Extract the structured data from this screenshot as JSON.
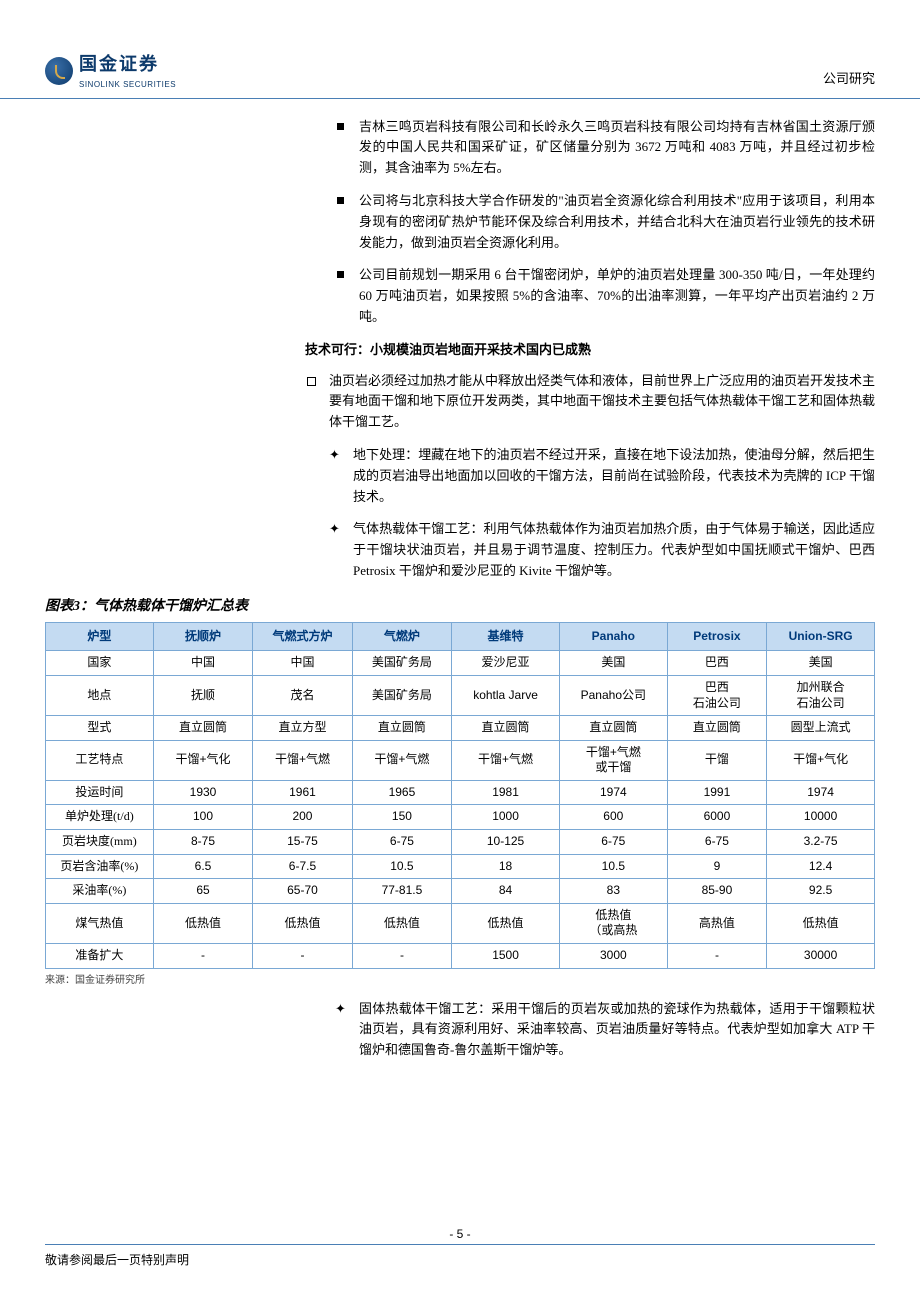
{
  "header": {
    "company_cn": "国金证券",
    "company_en": "SINOLINK SECURITIES",
    "category": "公司研究"
  },
  "colors": {
    "table_header_bg": "#c4dbf2",
    "table_header_text": "#003a7a",
    "table_border": "#7aa8d4",
    "rule_line": "#4a7fb5",
    "logo_dark": "#0d3a6b"
  },
  "bullets_top": [
    "吉林三鸣页岩科技有限公司和长岭永久三鸣页岩科技有限公司均持有吉林省国土资源厅颁发的中国人民共和国采矿证，矿区储量分别为 3672 万吨和 4083 万吨，并且经过初步检测，其含油率为 5%左右。",
    "公司将与北京科技大学合作研发的\"油页岩全资源化综合利用技术\"应用于该项目，利用本身现有的密闭矿热炉节能环保及综合利用技术，并结合北科大在油页岩行业领先的技术研发能力，做到油页岩全资源化利用。",
    "公司目前规划一期采用 6 台干馏密闭炉，单炉的油页岩处理量 300-350 吨/日，一年处理约 60 万吨油页岩，如果按照 5%的含油率、70%的出油率测算，一年平均产出页岩油约 2 万吨。"
  ],
  "tech_heading": "技术可行：小规模油页岩地面开采技术国内已成熟",
  "tech_bullet": "油页岩必须经过加热才能从中释放出烃类气体和液体，目前世界上广泛应用的油页岩开发技术主要有地面干馏和地下原位开发两类，其中地面干馏技术主要包括气体热载体干馏工艺和固体热载体干馏工艺。",
  "tech_sub": [
    "地下处理：埋藏在地下的油页岩不经过开采，直接在地下设法加热，使油母分解，然后把生成的页岩油导出地面加以回收的干馏方法，目前尚在试验阶段，代表技术为壳牌的 ICP 干馏技术。",
    "气体热载体干馏工艺：利用气体热载体作为油页岩加热介质，由于气体易于输送，因此适应于干馏块状油页岩，并且易于调节温度、控制压力。代表炉型如中国抚顺式干馏炉、巴西 Petrosix 干馏炉和爱沙尼亚的 Kivite 干馏炉等。"
  ],
  "table": {
    "title": "图表3：气体热载体干馏炉汇总表",
    "columns": [
      "炉型",
      "抚顺炉",
      "气燃式方炉",
      "气燃炉",
      "基维特",
      "Panaho",
      "Petrosix",
      "Union-SRG"
    ],
    "col_widths_pct": [
      13,
      12,
      12,
      12,
      13,
      13,
      12,
      13
    ],
    "rows": [
      [
        "国家",
        "中国",
        "中国",
        "美国矿务局",
        "爱沙尼亚",
        "美国",
        "巴西",
        "美国"
      ],
      [
        "地点",
        "抚顺",
        "茂名",
        "美国矿务局",
        "kohtla Jarve",
        "Panaho公司",
        "巴西\n石油公司",
        "加州联合\n石油公司"
      ],
      [
        "型式",
        "直立圆筒",
        "直立方型",
        "直立圆筒",
        "直立圆筒",
        "直立圆筒",
        "直立圆筒",
        "圆型上流式"
      ],
      [
        "工艺特点",
        "干馏+气化",
        "干馏+气燃",
        "干馏+气燃",
        "干馏+气燃",
        "干馏+气燃\n或干馏",
        "干馏",
        "干馏+气化"
      ],
      [
        "投运时间",
        "1930",
        "1961",
        "1965",
        "1981",
        "1974",
        "1991",
        "1974"
      ],
      [
        "单炉处理(t/d)",
        "100",
        "200",
        "150",
        "1000",
        "600",
        "6000",
        "10000"
      ],
      [
        "页岩块度(mm)",
        "8-75",
        "15-75",
        "6-75",
        "10-125",
        "6-75",
        "6-75",
        "3.2-75"
      ],
      [
        "页岩含油率(%)",
        "6.5",
        "6-7.5",
        "10.5",
        "18",
        "10.5",
        "9",
        "12.4"
      ],
      [
        "采油率(%)",
        "65",
        "65-70",
        "77-81.5",
        "84",
        "83",
        "85-90",
        "92.5"
      ],
      [
        "煤气热值",
        "低热值",
        "低热值",
        "低热值",
        "低热值",
        "低热值\n（或高热",
        "高热值",
        "低热值"
      ],
      [
        "准备扩大",
        "-",
        "-",
        "-",
        "1500",
        "3000",
        "-",
        "30000"
      ]
    ],
    "source": "来源：国金证券研究所"
  },
  "post_table_bullet": "固体热载体干馏工艺：采用干馏后的页岩灰或加热的瓷球作为热载体，适用于干馏颗粒状油页岩，具有资源利用好、采油率较高、页岩油质量好等特点。代表炉型如加拿大 ATP 干馏炉和德国鲁奇-鲁尔盖斯干馏炉等。",
  "footer": {
    "page_num": "- 5 -",
    "disclaimer": "敬请参阅最后一页特别声明"
  }
}
